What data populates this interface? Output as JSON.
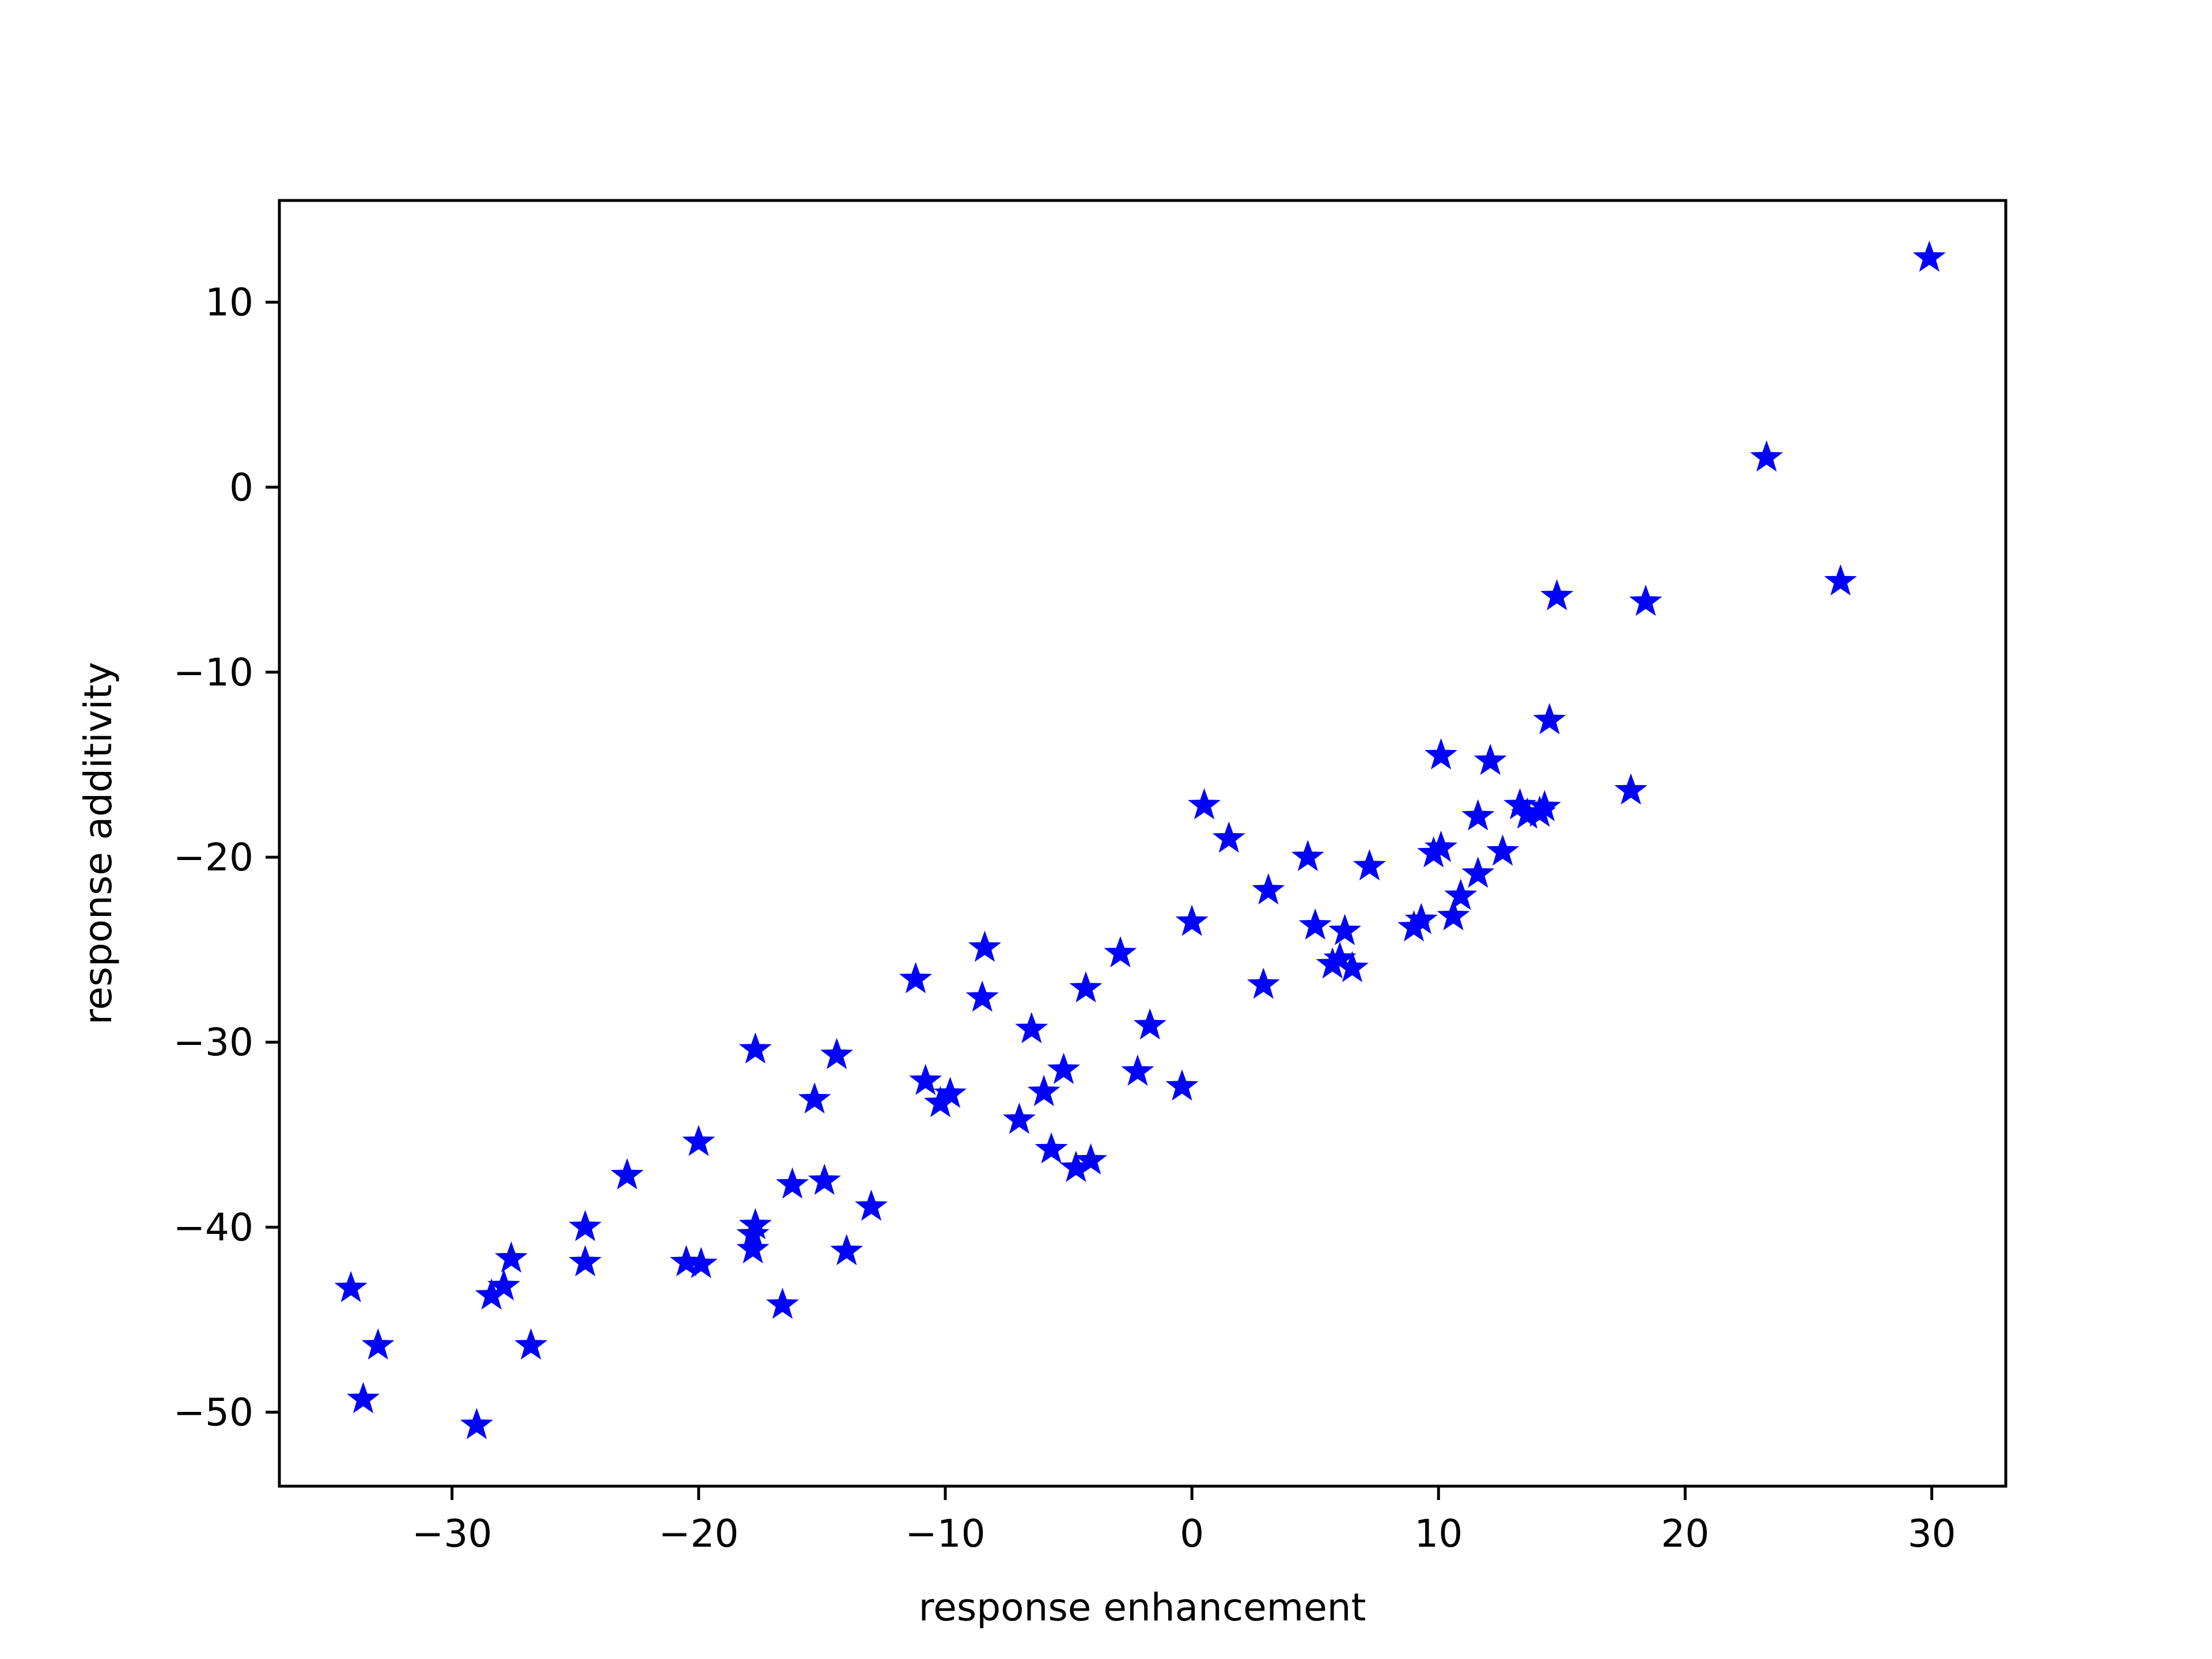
{
  "chart_data": {
    "type": "scatter",
    "xlabel": "response enhancement",
    "ylabel": "response additivity",
    "xlim": [
      -37,
      33
    ],
    "ylim": [
      -54,
      15.5
    ],
    "xticks": [
      {
        "value": -30,
        "label": "−30"
      },
      {
        "value": -20,
        "label": "−20"
      },
      {
        "value": -10,
        "label": "−10"
      },
      {
        "value": 0,
        "label": "0"
      },
      {
        "value": 10,
        "label": "10"
      },
      {
        "value": 20,
        "label": "20"
      },
      {
        "value": 30,
        "label": "30"
      }
    ],
    "yticks": [
      {
        "value": -50,
        "label": "−50"
      },
      {
        "value": -40,
        "label": "−40"
      },
      {
        "value": -30,
        "label": "−30"
      },
      {
        "value": -20,
        "label": "−20"
      },
      {
        "value": -10,
        "label": "−10"
      },
      {
        "value": 0,
        "label": "0"
      },
      {
        "value": 10,
        "label": "10"
      }
    ],
    "grid": false,
    "marker": "star",
    "marker_color": "#0000ff",
    "series": [
      {
        "points": [
          {
            "x": 29.9,
            "y": 12.4
          },
          {
            "x": 23.3,
            "y": 1.6
          },
          {
            "x": 26.3,
            "y": -5.1
          },
          {
            "x": 14.8,
            "y": -5.9
          },
          {
            "x": 18.4,
            "y": -6.2
          },
          {
            "x": 14.5,
            "y": -12.6
          },
          {
            "x": 10.1,
            "y": -14.5
          },
          {
            "x": 12.1,
            "y": -14.8
          },
          {
            "x": 17.8,
            "y": -16.4
          },
          {
            "x": 0.5,
            "y": -17.2
          },
          {
            "x": 13.3,
            "y": -17.2
          },
          {
            "x": 14.3,
            "y": -17.3
          },
          {
            "x": 11.6,
            "y": -17.8
          },
          {
            "x": 13.6,
            "y": -17.7
          },
          {
            "x": 14.1,
            "y": -17.6
          },
          {
            "x": 1.5,
            "y": -19.0
          },
          {
            "x": 10.1,
            "y": -19.5
          },
          {
            "x": 9.8,
            "y": -19.8
          },
          {
            "x": 12.6,
            "y": -19.7
          },
          {
            "x": 4.7,
            "y": -20.0
          },
          {
            "x": 7.2,
            "y": -20.5
          },
          {
            "x": 11.6,
            "y": -20.9
          },
          {
            "x": 3.1,
            "y": -21.8
          },
          {
            "x": 10.9,
            "y": -22.1
          },
          {
            "x": 10.6,
            "y": -23.2
          },
          {
            "x": 9.3,
            "y": -23.4
          },
          {
            "x": 0.0,
            "y": -23.5
          },
          {
            "x": 9.0,
            "y": -23.8
          },
          {
            "x": 5.0,
            "y": -23.7
          },
          {
            "x": 6.2,
            "y": -24.0
          },
          {
            "x": -8.4,
            "y": -24.9
          },
          {
            "x": -2.9,
            "y": -25.2
          },
          {
            "x": 6.0,
            "y": -25.5
          },
          {
            "x": 5.7,
            "y": -25.8
          },
          {
            "x": 6.5,
            "y": -26.0
          },
          {
            "x": -11.2,
            "y": -26.6
          },
          {
            "x": 2.9,
            "y": -26.9
          },
          {
            "x": -4.3,
            "y": -27.1
          },
          {
            "x": -8.5,
            "y": -27.6
          },
          {
            "x": -1.7,
            "y": -29.1
          },
          {
            "x": -6.5,
            "y": -29.3
          },
          {
            "x": -17.7,
            "y": -30.4
          },
          {
            "x": -14.4,
            "y": -30.7
          },
          {
            "x": -2.2,
            "y": -31.6
          },
          {
            "x": -5.2,
            "y": -31.5
          },
          {
            "x": -10.8,
            "y": -32.1
          },
          {
            "x": -0.4,
            "y": -32.4
          },
          {
            "x": -9.8,
            "y": -32.8
          },
          {
            "x": -6.0,
            "y": -32.7
          },
          {
            "x": -10.2,
            "y": -33.3
          },
          {
            "x": -15.3,
            "y": -33.1
          },
          {
            "x": -7.0,
            "y": -34.2
          },
          {
            "x": -20.0,
            "y": -35.4
          },
          {
            "x": -5.7,
            "y": -35.8
          },
          {
            "x": -4.1,
            "y": -36.4
          },
          {
            "x": -4.7,
            "y": -36.8
          },
          {
            "x": -22.9,
            "y": -37.2
          },
          {
            "x": -14.9,
            "y": -37.5
          },
          {
            "x": -16.2,
            "y": -37.7
          },
          {
            "x": -13.0,
            "y": -38.9
          },
          {
            "x": -24.6,
            "y": -40.0
          },
          {
            "x": -17.7,
            "y": -39.9
          },
          {
            "x": -17.8,
            "y": -40.4
          },
          {
            "x": -17.8,
            "y": -41.2
          },
          {
            "x": -14.0,
            "y": -41.3
          },
          {
            "x": -27.6,
            "y": -41.7
          },
          {
            "x": -20.5,
            "y": -41.9
          },
          {
            "x": -19.9,
            "y": -42.0
          },
          {
            "x": -24.6,
            "y": -41.9
          },
          {
            "x": -34.1,
            "y": -43.3
          },
          {
            "x": -27.9,
            "y": -43.2
          },
          {
            "x": -28.4,
            "y": -43.7
          },
          {
            "x": -16.6,
            "y": -44.2
          },
          {
            "x": -33.0,
            "y": -46.4
          },
          {
            "x": -26.8,
            "y": -46.4
          },
          {
            "x": -33.6,
            "y": -49.3
          },
          {
            "x": -29.0,
            "y": -50.7
          }
        ]
      }
    ]
  }
}
